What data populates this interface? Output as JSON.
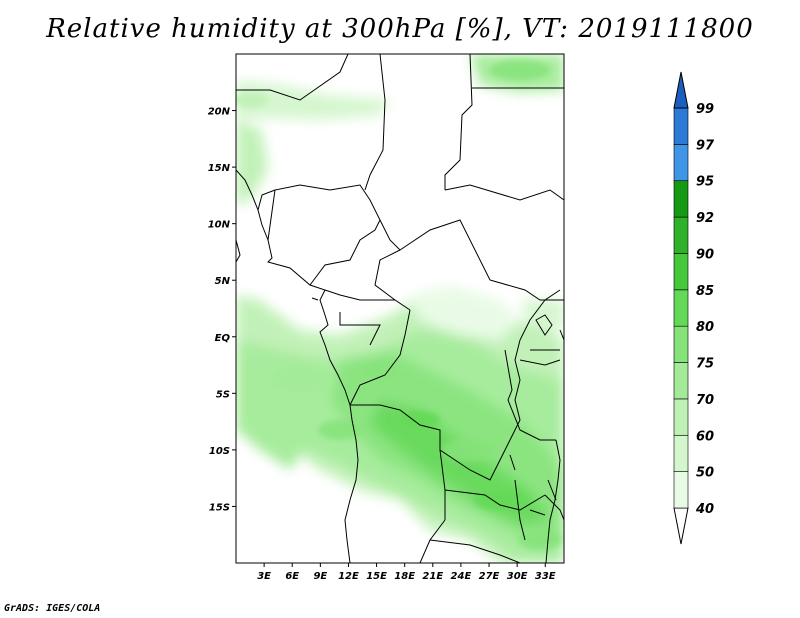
{
  "title": "Relative humidity at 300hPa [%], VT: 2019111800",
  "credit": "GrADS: IGES/COLA",
  "map": {
    "variable": "Relative humidity",
    "level": "300hPa",
    "units": "%",
    "valid_time": "2019111800",
    "lon_range": [
      0,
      35
    ],
    "lat_range": [
      -20,
      25
    ],
    "lat_ticks": [
      {
        "value": 20,
        "label": "20N"
      },
      {
        "value": 15,
        "label": "15N"
      },
      {
        "value": 10,
        "label": "10N"
      },
      {
        "value": 5,
        "label": "5N"
      },
      {
        "value": 0,
        "label": "EQ"
      },
      {
        "value": -5,
        "label": "5S"
      },
      {
        "value": -10,
        "label": "10S"
      },
      {
        "value": -15,
        "label": "15S"
      }
    ],
    "lon_ticks": [
      {
        "value": 3,
        "label": "3E"
      },
      {
        "value": 6,
        "label": "6E"
      },
      {
        "value": 9,
        "label": "9E"
      },
      {
        "value": 12,
        "label": "12E"
      },
      {
        "value": 15,
        "label": "15E"
      },
      {
        "value": 18,
        "label": "18E"
      },
      {
        "value": 21,
        "label": "21E"
      },
      {
        "value": 24,
        "label": "24E"
      },
      {
        "value": 27,
        "label": "27E"
      },
      {
        "value": 30,
        "label": "30E"
      },
      {
        "value": 33,
        "label": "33E"
      }
    ]
  },
  "colorbar": {
    "levels": [
      {
        "label": "40",
        "color": "#e8fbe5"
      },
      {
        "label": "50",
        "color": "#d3f6cc"
      },
      {
        "label": "60",
        "color": "#bff1b5"
      },
      {
        "label": "70",
        "color": "#a3eb98"
      },
      {
        "label": "75",
        "color": "#86e37a"
      },
      {
        "label": "80",
        "color": "#63d957"
      },
      {
        "label": "85",
        "color": "#45c93a"
      },
      {
        "label": "90",
        "color": "#2fb22a"
      },
      {
        "label": "92",
        "color": "#169a14"
      },
      {
        "label": "95",
        "color": "#3f95e6"
      },
      {
        "label": "97",
        "color": "#2a7ad6"
      },
      {
        "label": "99",
        "color": "#1a5fbf"
      }
    ],
    "low_color": "#ffffff",
    "high_color": "#1a5fbf"
  }
}
